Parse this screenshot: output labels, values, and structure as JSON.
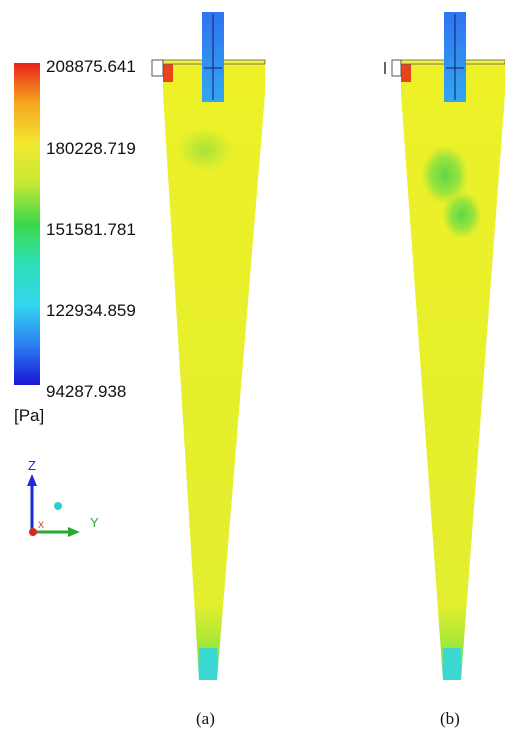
{
  "legend": {
    "ticks": [
      "208875.641",
      "180228.719",
      "151581.781",
      "122934.859",
      "94287.938"
    ],
    "unit": "[Pa]",
    "colors": [
      "#e8231c",
      "#f5a21e",
      "#f2e830",
      "#c8e834",
      "#3bd84a",
      "#2ee0b4",
      "#33d6f0",
      "#2a7cf0",
      "#1a14d6"
    ]
  },
  "axes": {
    "z": "Z",
    "y": "Y",
    "x": "X"
  },
  "panels": [
    {
      "caption": "(a)"
    },
    {
      "caption": "(b)"
    }
  ],
  "colors": {
    "body": "#eef128",
    "body_green": "#b6e634",
    "outlet_blue": "#2b8ef0",
    "cone_tip": "#37e0cc"
  }
}
